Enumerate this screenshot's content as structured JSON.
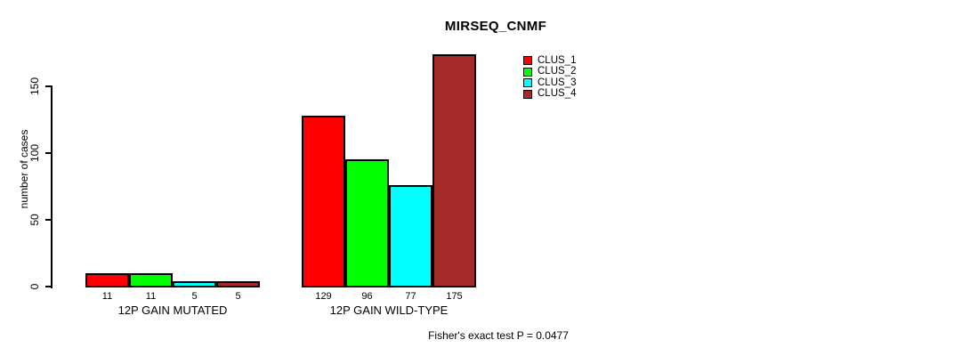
{
  "title": "MIRSEQ_CNMF",
  "ylabel": "number of cases",
  "footer": "Fisher's exact test P = 0.0477",
  "legend": {
    "items": [
      {
        "label": "CLUS_1",
        "color": "#ff0000"
      },
      {
        "label": "CLUS_2",
        "color": "#00ff00"
      },
      {
        "label": "CLUS_3",
        "color": "#00ffff"
      },
      {
        "label": "CLUS_4",
        "color": "#a52a2a"
      }
    ]
  },
  "chart_data": {
    "type": "bar",
    "title": "MIRSEQ_CNMF",
    "ylabel": "number of cases",
    "xlabel": "",
    "categories": [
      "12P GAIN MUTATED",
      "12P GAIN WILD-TYPE"
    ],
    "series": [
      {
        "name": "CLUS_1",
        "color": "#ff0000",
        "values": [
          11,
          129
        ]
      },
      {
        "name": "CLUS_2",
        "color": "#00ff00",
        "values": [
          11,
          96
        ]
      },
      {
        "name": "CLUS_3",
        "color": "#00ffff",
        "values": [
          5,
          77
        ]
      },
      {
        "name": "CLUS_4",
        "color": "#a52a2a",
        "values": [
          5,
          175
        ]
      }
    ],
    "bar_value_labels": [
      [
        11,
        11,
        5,
        5
      ],
      [
        129,
        96,
        77,
        175
      ]
    ],
    "y_ticks": [
      0,
      50,
      100,
      150
    ],
    "ylim": [
      0,
      175
    ],
    "grid": false,
    "legend_position": "top-right",
    "annotation": "Fisher's exact test P = 0.0477"
  }
}
